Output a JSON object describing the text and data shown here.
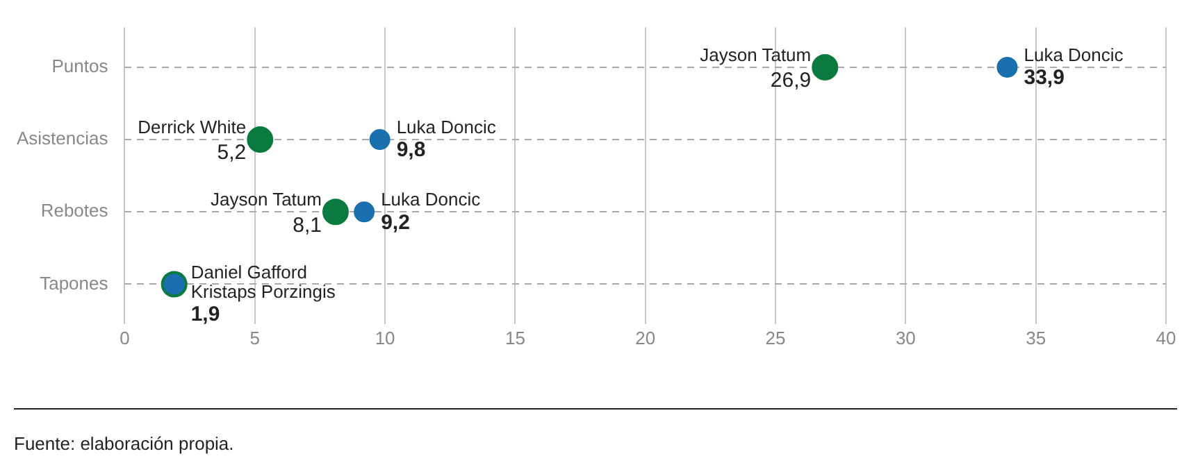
{
  "chart_data": {
    "type": "scatter",
    "orientation": "horizontal",
    "categories": [
      "Puntos",
      "Asistencias",
      "Rebotes",
      "Tapones"
    ],
    "series": [
      {
        "color": "#1a6faf",
        "values": [
          33.9,
          9.8,
          9.2,
          1.9
        ],
        "value_labels": [
          "33,9",
          "9,8",
          "9,2",
          "1,9"
        ]
      },
      {
        "color": "#0a7a3e",
        "values": [
          26.9,
          5.2,
          8.1,
          1.9
        ],
        "value_labels": [
          "26,9",
          "5,2",
          "8,1",
          null
        ]
      }
    ],
    "xlim": [
      0,
      40
    ],
    "xticks": [
      0,
      5,
      10,
      15,
      20,
      25,
      30,
      35,
      40
    ],
    "grid": true,
    "legend": false,
    "marker": "circle",
    "annotations": [
      {
        "text": "Luka Doncic",
        "x": 33.9,
        "y": "Puntos"
      },
      {
        "text": "Jayson Tatum",
        "x": 26.9,
        "y": "Puntos"
      },
      {
        "text": "Luka Doncic",
        "x": 9.8,
        "y": "Asistencias"
      },
      {
        "text": "Derrick White",
        "x": 5.2,
        "y": "Asistencias"
      },
      {
        "text": "Luka Doncic",
        "x": 9.2,
        "y": "Rebotes"
      },
      {
        "text": "Jayson Tatum",
        "x": 8.1,
        "y": "Rebotes"
      },
      {
        "text": "Daniel Gafford",
        "x": 1.9,
        "y": "Tapones"
      },
      {
        "text": "Kristaps Porzingis",
        "x": 1.9,
        "y": "Tapones"
      },
      "Fuente: elaboración propia."
    ]
  }
}
